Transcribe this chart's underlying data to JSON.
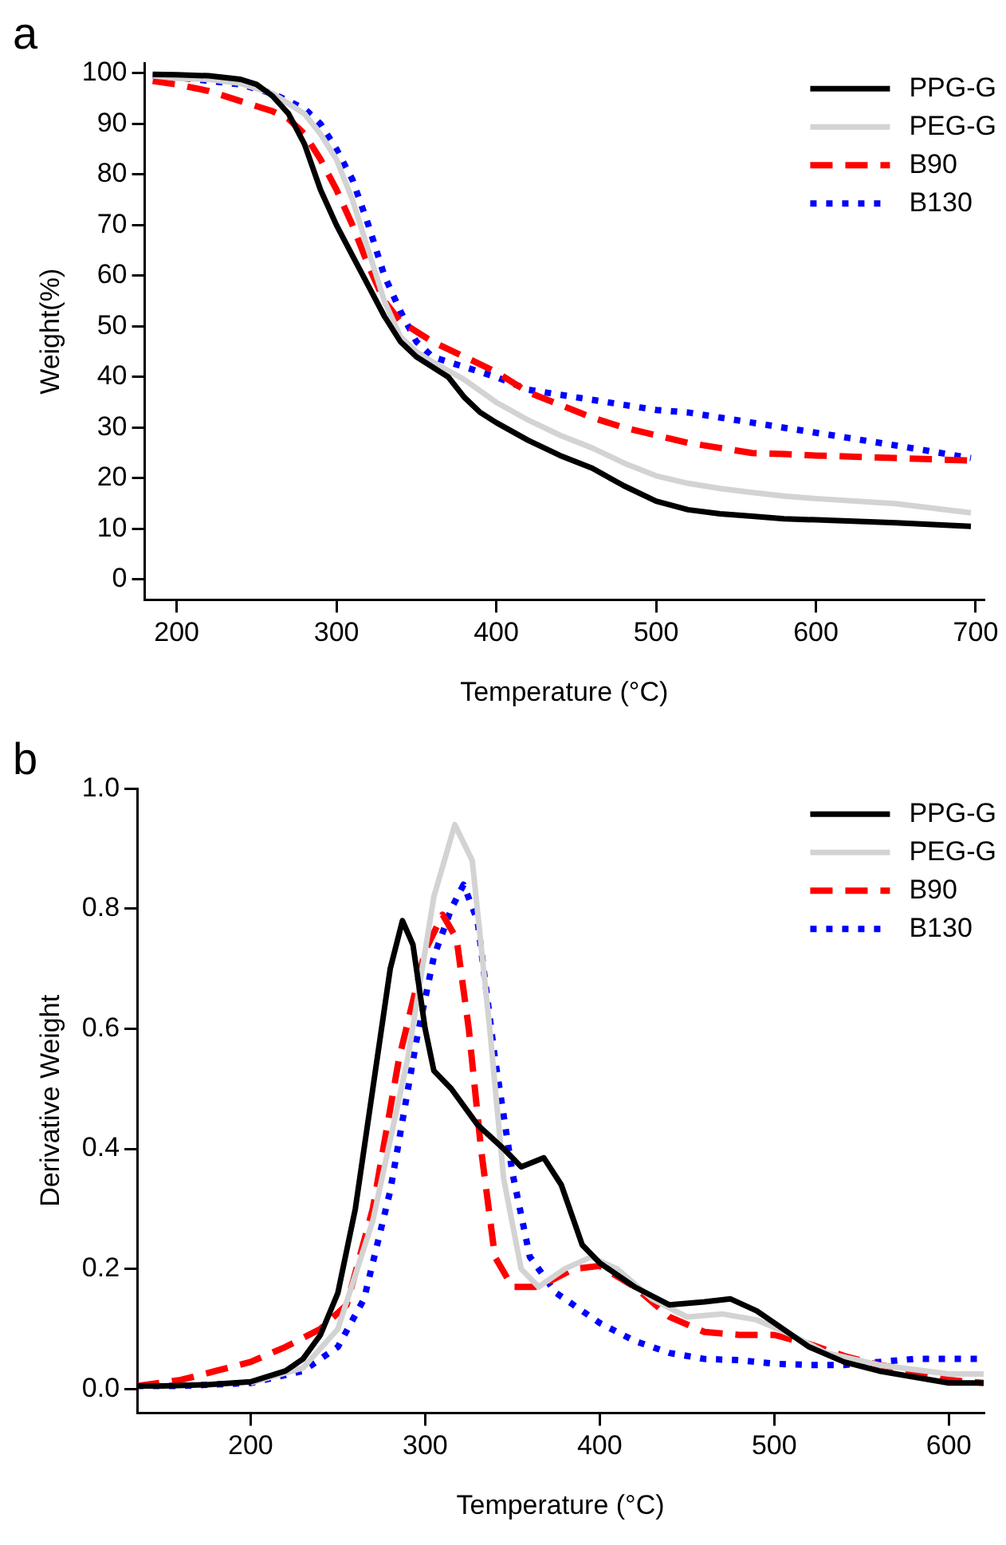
{
  "chart_data": [
    {
      "type": "line",
      "title": "a",
      "xlabel": "Temperature (°C)",
      "ylabel": "Weight(%)",
      "xlim": [
        180,
        705
      ],
      "ylim": [
        -4,
        102
      ],
      "xticks": [
        200,
        300,
        400,
        500,
        600,
        700
      ],
      "yticks": [
        0,
        10,
        20,
        30,
        40,
        50,
        60,
        70,
        80,
        90,
        100
      ],
      "grid": false,
      "legend": "top right",
      "marker": "none",
      "series": [
        {
          "name": "PPG-G",
          "color": "#000000",
          "line_style": "solid",
          "x": [
            185,
            200,
            220,
            240,
            250,
            260,
            270,
            280,
            290,
            300,
            310,
            320,
            330,
            340,
            350,
            360,
            370,
            380,
            390,
            400,
            420,
            440,
            460,
            480,
            500,
            520,
            540,
            560,
            580,
            600,
            650,
            697
          ],
          "values": [
            99.8,
            99.7,
            99.5,
            98.8,
            97.8,
            95.5,
            92,
            86,
            77,
            70,
            64,
            58,
            52,
            47,
            44,
            42,
            40,
            36,
            33,
            31,
            27.5,
            24.5,
            22,
            18.5,
            15.5,
            13.8,
            13,
            12.5,
            12,
            11.8,
            11.2,
            10.5
          ]
        },
        {
          "name": "PEG-G",
          "color": "#d3d3d3",
          "line_style": "solid",
          "x": [
            185,
            200,
            220,
            240,
            260,
            280,
            290,
            300,
            310,
            320,
            330,
            340,
            350,
            360,
            380,
            400,
            420,
            440,
            460,
            480,
            500,
            520,
            540,
            560,
            580,
            600,
            650,
            697
          ],
          "values": [
            99.5,
            99,
            98.8,
            98,
            96,
            92,
            88,
            83,
            75,
            65,
            55,
            48,
            45,
            43,
            39.5,
            35,
            31.5,
            28.5,
            26,
            23,
            20.5,
            19,
            18,
            17.2,
            16.5,
            16,
            15,
            13.2
          ]
        },
        {
          "name": "B90",
          "color": "#ff0000",
          "line_style": "dashed",
          "x": [
            185,
            200,
            220,
            240,
            260,
            270,
            280,
            290,
            300,
            310,
            320,
            330,
            340,
            350,
            360,
            380,
            400,
            420,
            440,
            460,
            480,
            500,
            520,
            540,
            560,
            580,
            600,
            650,
            697
          ],
          "values": [
            98.5,
            97.8,
            96.5,
            94.5,
            92.5,
            91,
            88,
            83,
            77,
            70,
            62,
            55,
            51,
            49,
            47,
            44,
            41,
            37,
            34.5,
            32,
            30,
            28.5,
            27,
            26,
            25,
            24.8,
            24.5,
            24,
            23.5
          ]
        },
        {
          "name": "B130",
          "color": "#0000ff",
          "line_style": "dotted",
          "x": [
            185,
            200,
            220,
            240,
            260,
            280,
            290,
            300,
            310,
            320,
            330,
            340,
            350,
            360,
            380,
            400,
            420,
            440,
            460,
            480,
            500,
            520,
            540,
            560,
            580,
            600,
            620,
            650,
            697
          ],
          "values": [
            99.5,
            99.2,
            98.5,
            97.8,
            96,
            93,
            90,
            85,
            79,
            70,
            60,
            53,
            47,
            44,
            42,
            40,
            37.5,
            36.5,
            35.5,
            34.5,
            33.5,
            33,
            32,
            31,
            30,
            29,
            28,
            26.5,
            24
          ]
        }
      ]
    },
    {
      "type": "line",
      "title": "b",
      "xlabel": "Temperature (°C)",
      "ylabel": "Derivative Weight",
      "xlim": [
        135,
        620
      ],
      "ylim": [
        -0.04,
        1.0
      ],
      "xticks": [
        200,
        300,
        400,
        500,
        600
      ],
      "yticks": [
        {
          "value": 0,
          "label": "0.0"
        },
        0.2,
        0.4,
        0.6,
        0.8,
        {
          "value": 1,
          "label": "1.0"
        }
      ],
      "grid": false,
      "legend": "top right",
      "marker": "none",
      "series": [
        {
          "name": "PPG-G",
          "color": "#000000",
          "line_style": "solid",
          "x": [
            135,
            150,
            175,
            200,
            220,
            230,
            240,
            250,
            260,
            270,
            280,
            287,
            293,
            300,
            305,
            315,
            330,
            345,
            355,
            368,
            378,
            390,
            400,
            420,
            440,
            460,
            475,
            490,
            500,
            520,
            540,
            560,
            580,
            600,
            620
          ],
          "values": [
            0.005,
            0.005,
            0.007,
            0.012,
            0.03,
            0.05,
            0.09,
            0.16,
            0.3,
            0.5,
            0.7,
            0.78,
            0.74,
            0.6,
            0.53,
            0.5,
            0.44,
            0.4,
            0.37,
            0.385,
            0.34,
            0.24,
            0.21,
            0.17,
            0.14,
            0.145,
            0.15,
            0.13,
            0.11,
            0.07,
            0.045,
            0.03,
            0.02,
            0.01,
            0.01
          ]
        },
        {
          "name": "PEG-G",
          "color": "#d3d3d3",
          "line_style": "solid",
          "x": [
            200,
            230,
            250,
            270,
            290,
            305,
            317,
            327,
            337,
            345,
            355,
            365,
            380,
            395,
            410,
            430,
            450,
            470,
            490,
            510,
            530,
            560,
            600,
            620
          ],
          "values": [
            0.01,
            0.035,
            0.1,
            0.28,
            0.55,
            0.82,
            0.94,
            0.88,
            0.6,
            0.35,
            0.2,
            0.17,
            0.2,
            0.22,
            0.2,
            0.15,
            0.12,
            0.125,
            0.115,
            0.09,
            0.06,
            0.04,
            0.025,
            0.025
          ]
        },
        {
          "name": "B90",
          "color": "#ff0000",
          "line_style": "dashed",
          "x": [
            135,
            160,
            180,
            200,
            220,
            240,
            255,
            270,
            285,
            300,
            310,
            318,
            325,
            332,
            340,
            350,
            365,
            385,
            400,
            420,
            440,
            460,
            480,
            500,
            520,
            540,
            560,
            580,
            600,
            620
          ],
          "values": [
            0.005,
            0.015,
            0.03,
            0.045,
            0.07,
            0.1,
            0.14,
            0.3,
            0.55,
            0.73,
            0.79,
            0.75,
            0.6,
            0.4,
            0.22,
            0.17,
            0.17,
            0.2,
            0.205,
            0.17,
            0.12,
            0.095,
            0.09,
            0.09,
            0.075,
            0.055,
            0.04,
            0.03,
            0.015,
            0.01
          ]
        },
        {
          "name": "B130",
          "color": "#0000ff",
          "line_style": "dotted",
          "x": [
            135,
            160,
            200,
            230,
            250,
            265,
            280,
            295,
            305,
            315,
            322,
            330,
            340,
            350,
            360,
            375,
            400,
            420,
            440,
            460,
            480,
            500,
            520,
            540,
            560,
            580,
            600,
            620
          ],
          "values": [
            0.005,
            0.005,
            0.01,
            0.03,
            0.07,
            0.15,
            0.33,
            0.58,
            0.72,
            0.8,
            0.84,
            0.78,
            0.55,
            0.36,
            0.22,
            0.16,
            0.11,
            0.08,
            0.06,
            0.05,
            0.048,
            0.042,
            0.04,
            0.04,
            0.045,
            0.05,
            0.05,
            0.05
          ]
        }
      ]
    }
  ]
}
